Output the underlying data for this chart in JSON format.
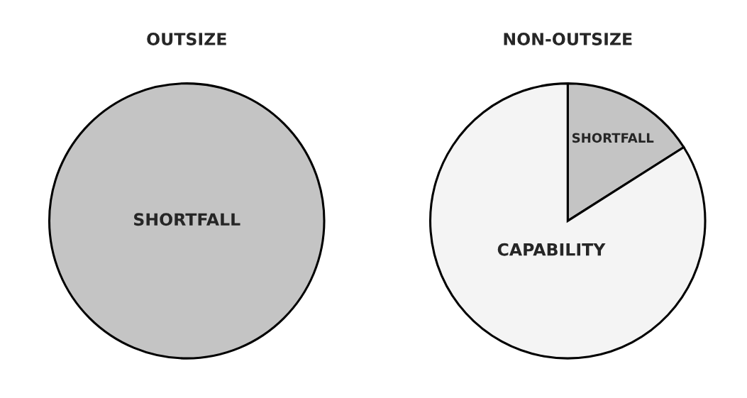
{
  "chart_data": [
    {
      "type": "pie",
      "title": "OUTSIZE",
      "categories": [
        "SHORTFALL"
      ],
      "values": [
        100
      ],
      "colors": [
        "#c4c4c4"
      ]
    },
    {
      "type": "pie",
      "title": "NON-OUTSIZE",
      "categories": [
        "SHORTFALL",
        "CAPABILITY"
      ],
      "values": [
        16,
        84
      ],
      "colors": [
        "#c4c4c4",
        "#f4f4f4"
      ]
    }
  ]
}
